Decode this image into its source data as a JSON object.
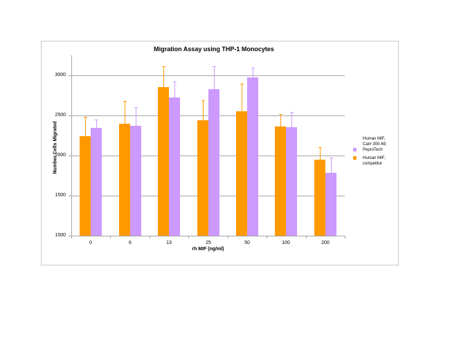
{
  "chart_data": {
    "type": "bar",
    "title": "Migration Assay using THP-1 Monocytes",
    "xlabel": "rh MIF (ng/ml)",
    "ylabel": "Number Cells Migrated",
    "ylim": [
      1000,
      3200
    ],
    "yticks": [
      1000,
      1500,
      2000,
      2500,
      3000
    ],
    "grid": true,
    "legend_position": "right",
    "categories": [
      "0",
      "6",
      "13",
      "25",
      "50",
      "100",
      "200"
    ],
    "series": [
      {
        "name": "Human MIF; competitor",
        "color": "#FF9900",
        "values": [
          2240,
          2400,
          2855,
          2440,
          2555,
          2365,
          1950
        ],
        "error_upper": [
          2480,
          2680,
          3115,
          2690,
          2895,
          2515,
          2100
        ]
      },
      {
        "name": "Human MIF, Cat# 300-69; PeproTech",
        "color": "#CC99FF",
        "values": [
          2345,
          2375,
          2720,
          2830,
          2970,
          2355,
          1785
        ],
        "error_upper": [
          2450,
          2600,
          2925,
          3115,
          3095,
          2540,
          1975
        ]
      }
    ]
  },
  "legend": {
    "items": [
      {
        "lines": [
          "Human MIF,",
          "Cat# 300-69;",
          "PeproTech"
        ],
        "color": "#CC99FF"
      },
      {
        "lines": [
          "Human MIF;",
          "competitor"
        ],
        "color": "#FF9900"
      }
    ]
  }
}
